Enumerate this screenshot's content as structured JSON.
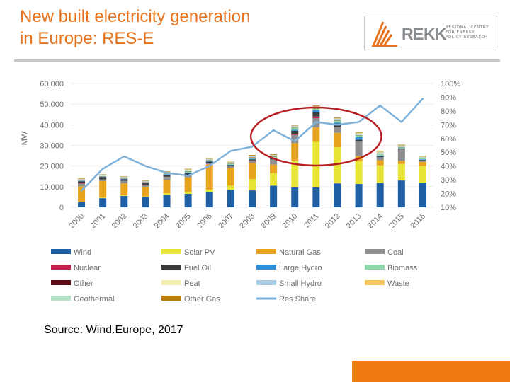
{
  "slide": {
    "title_line1": "New built electricity generation",
    "title_line2": "in Europe: RES-E",
    "source": "Source: Wind.Europe, 2017"
  },
  "logo": {
    "name": "REKK",
    "subtitle_line1": "REGIONAL CENTRE",
    "subtitle_line2": "FOR ENERGY",
    "subtitle_line3": "POLICY RESEARCH",
    "icon": "rekk-flame-logo-icon"
  },
  "colors": {
    "accent": "#e8731e",
    "highlight_ellipse": "#b81e22"
  },
  "chart_data": {
    "type": "bar",
    "stacked": true,
    "secondary_line": "Res Share",
    "ylabel": "MW",
    "ylim": [
      0,
      60000
    ],
    "y2lim": [
      10,
      100
    ],
    "yticks": [
      "0",
      "10.000",
      "20.000",
      "30.000",
      "40.000",
      "50.000",
      "60.000"
    ],
    "y2ticks": [
      "10%",
      "20%",
      "30%",
      "40%",
      "50%",
      "60%",
      "70%",
      "80%",
      "90%",
      "100%"
    ],
    "categories": [
      "2000",
      "2001",
      "2002",
      "2003",
      "2004",
      "2005",
      "2006",
      "2007",
      "2008",
      "2009",
      "2010",
      "2011",
      "2012",
      "2013",
      "2014",
      "2015",
      "2016"
    ],
    "series": [
      {
        "name": "Wind",
        "color": "#1f5fa6",
        "values": [
          2500,
          4400,
          5500,
          5000,
          6000,
          6500,
          7500,
          8500,
          8200,
          10500,
          9600,
          9700,
          11600,
          11300,
          11800,
          13000,
          12000
        ]
      },
      {
        "name": "Solar PV",
        "color": "#e6e535",
        "values": [
          200,
          300,
          300,
          300,
          800,
          1000,
          1000,
          2000,
          5500,
          6000,
          13000,
          22000,
          17500,
          11000,
          8500,
          8000,
          8000
        ]
      },
      {
        "name": "Natural Gas",
        "color": "#e8a41c",
        "values": [
          7500,
          8000,
          5800,
          4700,
          6500,
          7000,
          12300,
          8600,
          7800,
          4200,
          8500,
          7000,
          7000,
          2500,
          2500,
          1500,
          2000
        ]
      },
      {
        "name": "Coal",
        "color": "#8e8e90",
        "values": [
          1200,
          800,
          1200,
          1000,
          1500,
          1200,
          800,
          700,
          700,
          2500,
          4000,
          4500,
          3000,
          7000,
          1500,
          5500,
          600
        ]
      },
      {
        "name": "Nuclear",
        "color": "#c0204b",
        "values": [
          200,
          0,
          0,
          0,
          0,
          0,
          0,
          0,
          500,
          0,
          500,
          800,
          0,
          0,
          0,
          0,
          0
        ]
      },
      {
        "name": "Fuel Oil",
        "color": "#3b3b3b",
        "values": [
          1000,
          1200,
          800,
          700,
          1000,
          900,
          600,
          700,
          500,
          500,
          1500,
          2000,
          1500,
          1000,
          500,
          500,
          300
        ]
      },
      {
        "name": "Large Hydro",
        "color": "#2f8fd8",
        "values": [
          200,
          100,
          200,
          100,
          200,
          200,
          100,
          100,
          300,
          300,
          500,
          1000,
          500,
          1200,
          300,
          200,
          300
        ]
      },
      {
        "name": "Biomass",
        "color": "#8fd6ab",
        "values": [
          300,
          300,
          300,
          300,
          500,
          700,
          500,
          500,
          700,
          600,
          1000,
          1000,
          1000,
          1000,
          900,
          500,
          600
        ]
      },
      {
        "name": "Other",
        "color": "#5c0a16",
        "values": [
          100,
          100,
          100,
          100,
          100,
          100,
          100,
          100,
          100,
          100,
          100,
          100,
          100,
          100,
          100,
          100,
          100
        ]
      },
      {
        "name": "Peat",
        "color": "#f2efb0",
        "values": [
          100,
          100,
          100,
          100,
          100,
          100,
          100,
          100,
          100,
          100,
          100,
          100,
          100,
          100,
          100,
          100,
          100
        ]
      },
      {
        "name": "Small Hydro",
        "color": "#a9cbe3",
        "values": [
          300,
          300,
          300,
          300,
          300,
          400,
          300,
          300,
          300,
          300,
          500,
          500,
          500,
          500,
          400,
          300,
          300
        ]
      },
      {
        "name": "Waste",
        "color": "#f6c85c",
        "values": [
          200,
          200,
          200,
          200,
          200,
          300,
          200,
          200,
          300,
          300,
          300,
          300,
          300,
          400,
          400,
          300,
          300
        ]
      },
      {
        "name": "Geothermal",
        "color": "#b6e3c5",
        "values": [
          50,
          50,
          50,
          50,
          50,
          50,
          50,
          50,
          50,
          50,
          50,
          50,
          50,
          50,
          50,
          50,
          50
        ]
      },
      {
        "name": "Other Gas",
        "color": "#b97d0d",
        "values": [
          100,
          100,
          100,
          100,
          200,
          200,
          200,
          200,
          300,
          300,
          300,
          300,
          300,
          300,
          300,
          300,
          300
        ]
      }
    ],
    "line": {
      "name": "Res Share",
      "color": "#7fb2da",
      "values": [
        22,
        38,
        47,
        40,
        35,
        33,
        40,
        51,
        54,
        66,
        58,
        72,
        70,
        72,
        84,
        72,
        89
      ]
    },
    "legend_position": "bottom",
    "annotation": "red ellipse highlighting 2009-2013"
  }
}
